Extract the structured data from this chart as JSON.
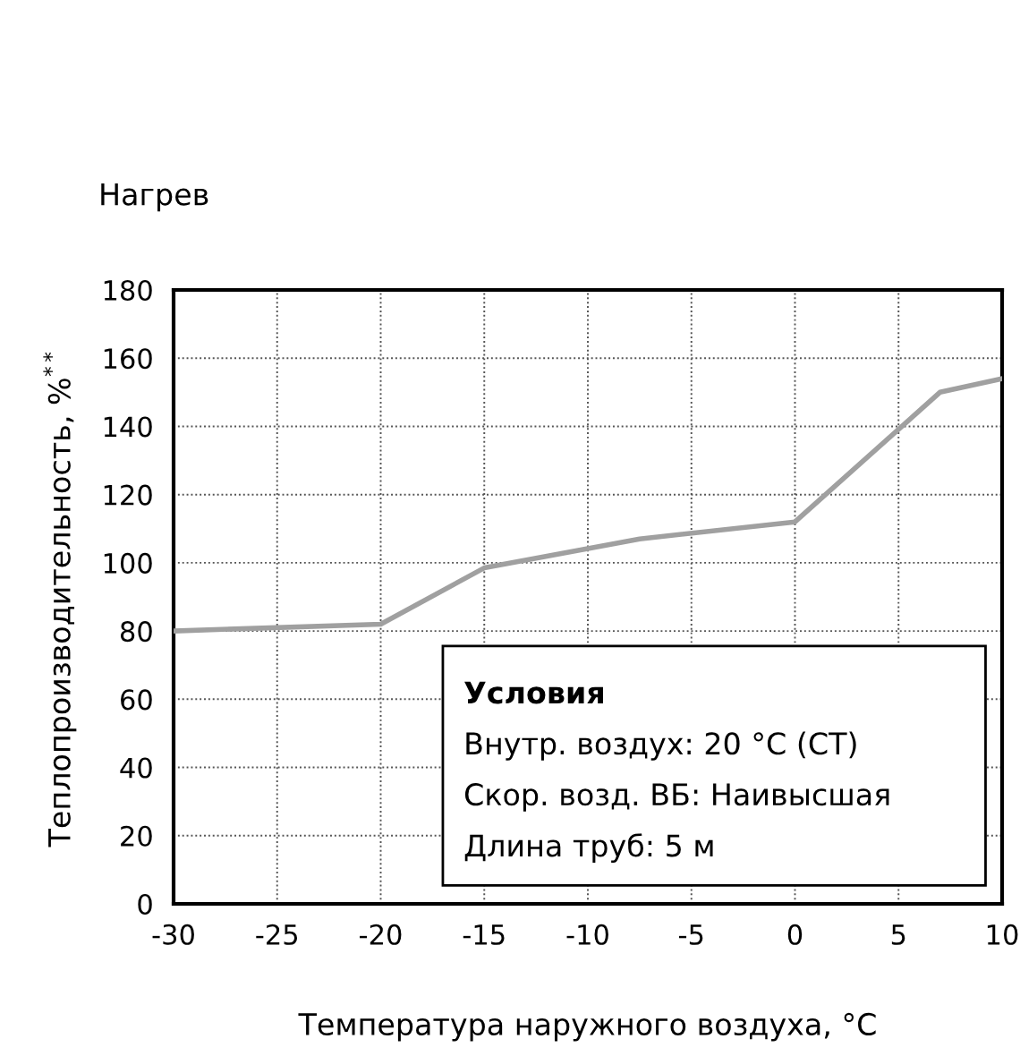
{
  "chart_data": {
    "type": "line",
    "title": "Нагрев",
    "xlabel": "Температура наружного воздуха, °C",
    "ylabel": "Теплопроизводительность, %$^{**}$",
    "x": [
      -30,
      -20,
      -15,
      -7.5,
      0,
      7,
      10
    ],
    "series": [
      {
        "color": "#a0a0a0",
        "values": [
          80,
          82,
          98.5,
          107,
          112,
          150,
          154
        ]
      }
    ],
    "xlim": [
      -30,
      10
    ],
    "xticks": [
      -30,
      -25,
      -20,
      -15,
      -10,
      -5,
      0,
      5,
      10
    ],
    "ylim": [
      0,
      180
    ],
    "yticks": [
      0,
      20,
      40,
      60,
      80,
      100,
      120,
      140,
      160,
      180
    ],
    "grid": true,
    "marker": "none",
    "line_style": "solid",
    "legend": false,
    "annotations": [
      "Условия",
      "Внутр. воздух: 20 °C (СТ)",
      "Скор. возд. ВБ: Наивысшая",
      "Длина труб: 5 м"
    ]
  }
}
